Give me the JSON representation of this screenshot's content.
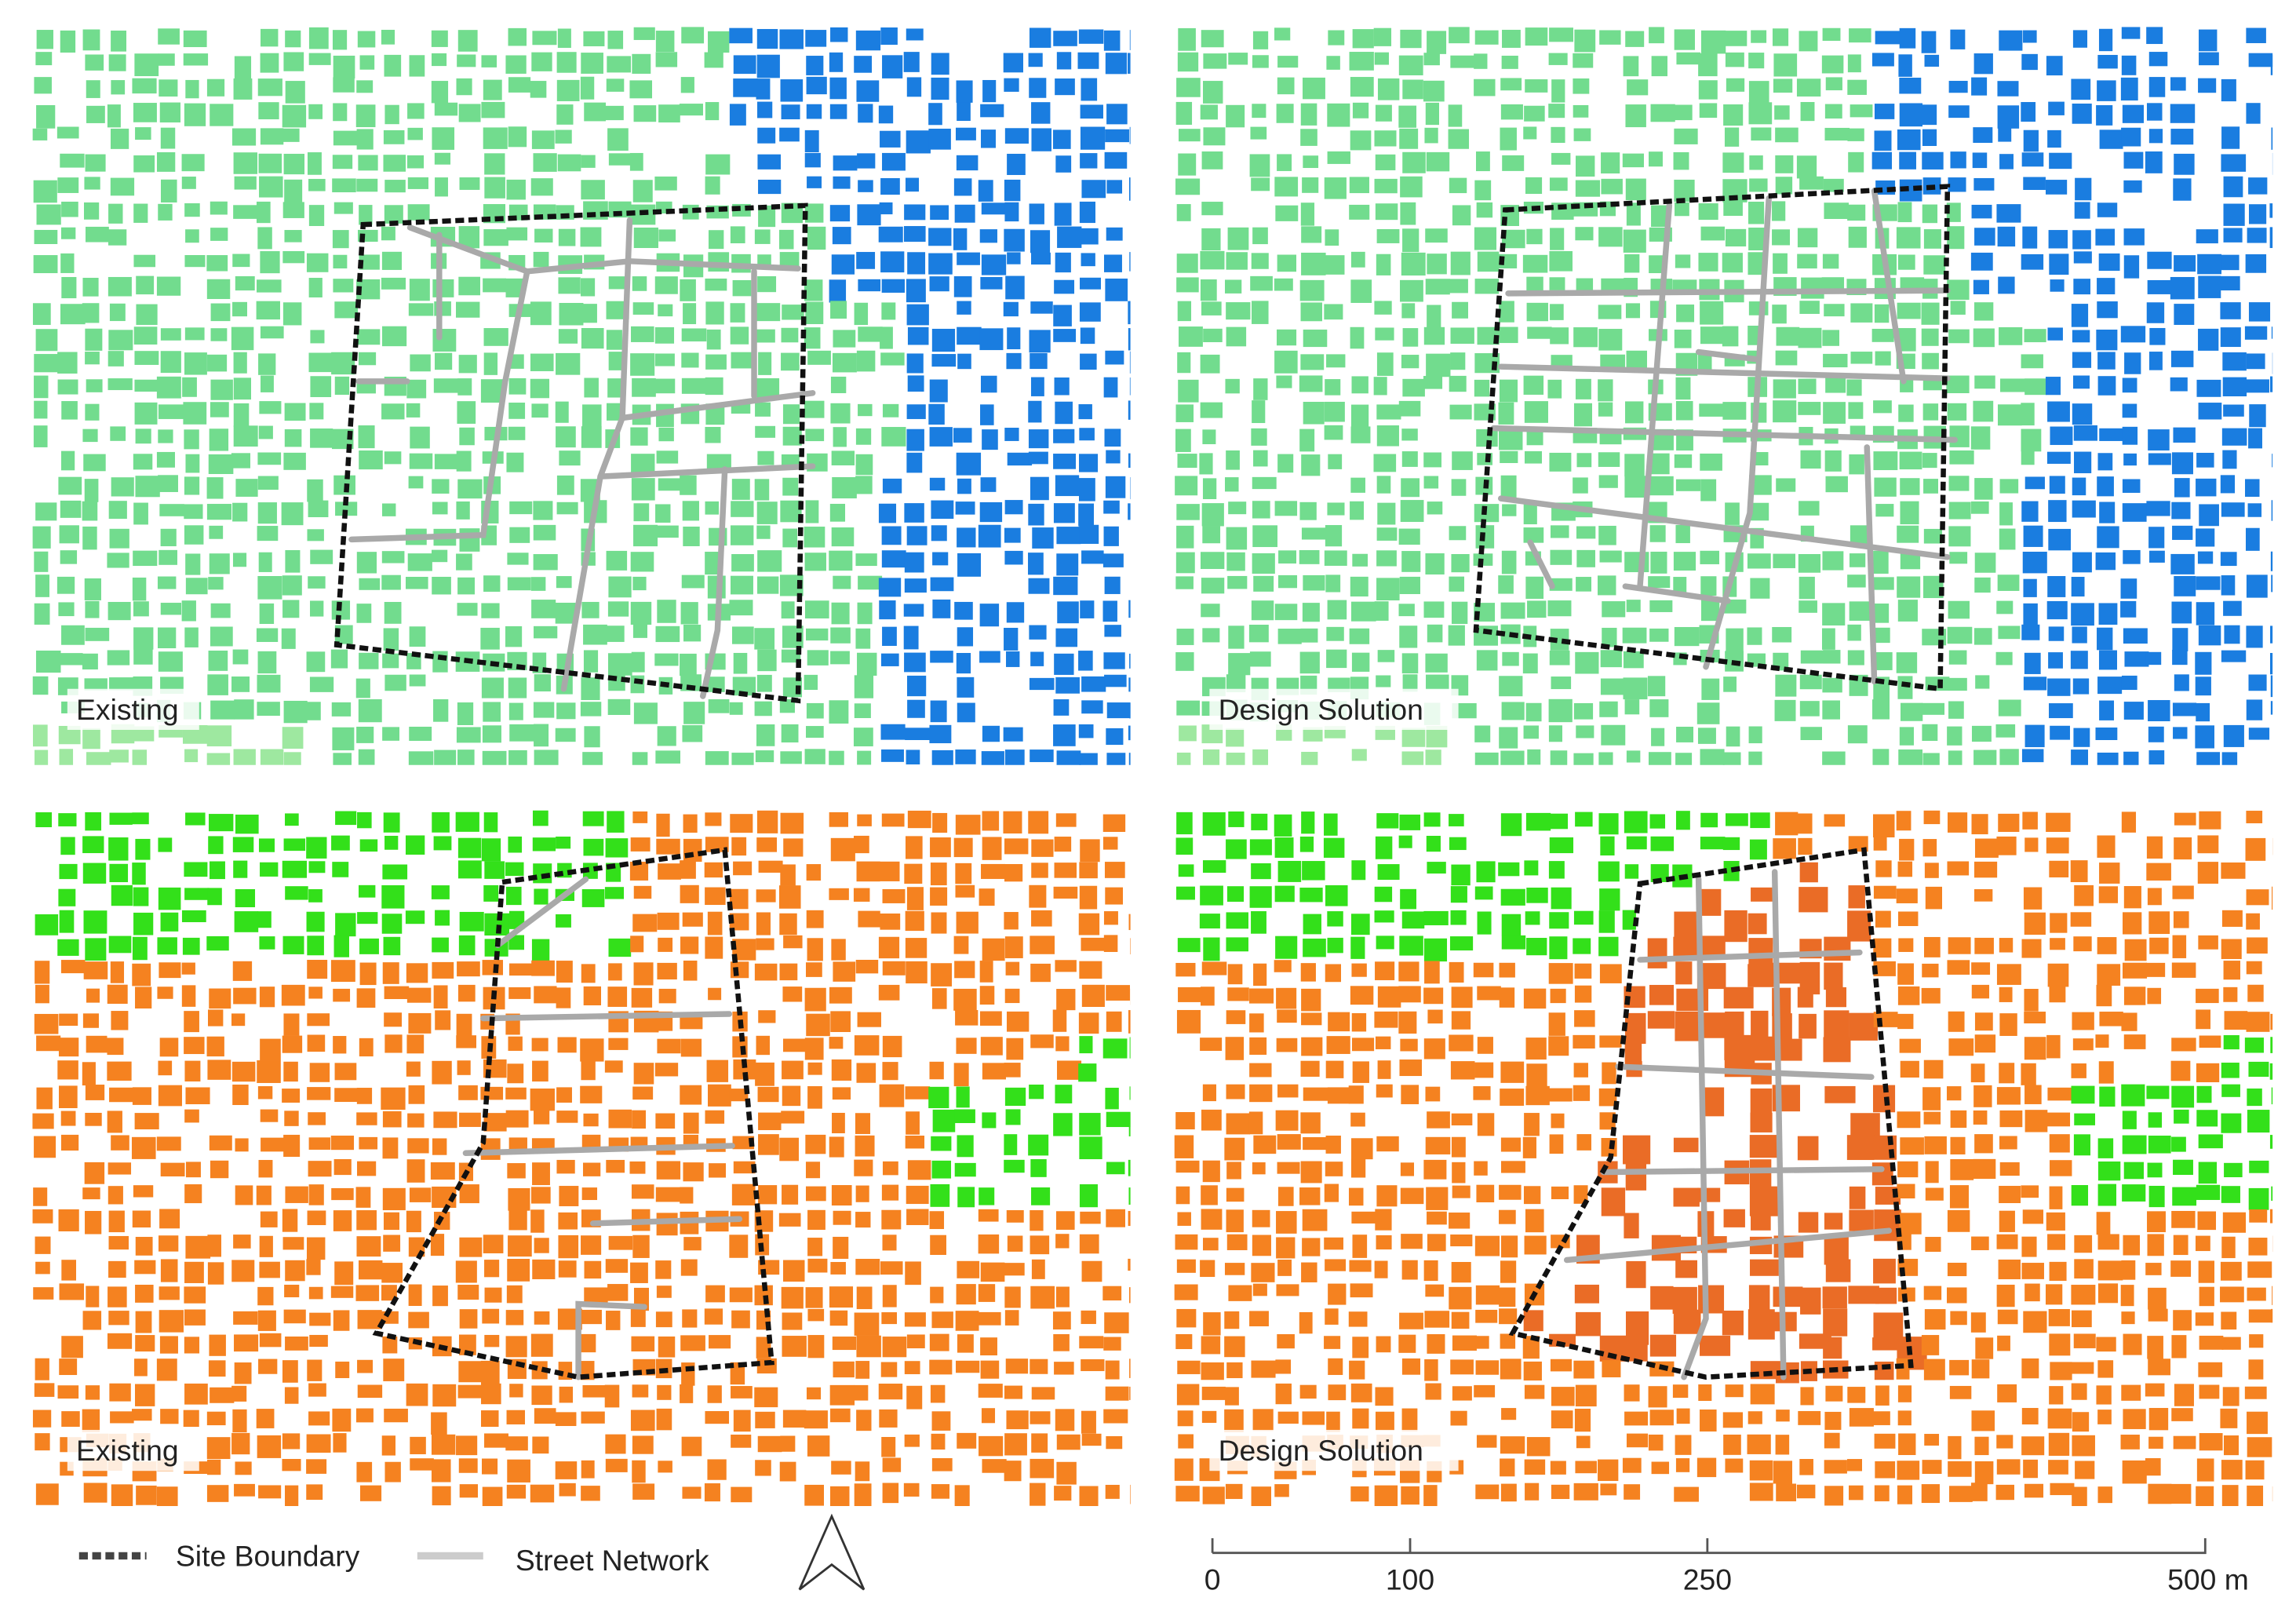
{
  "panels": [
    {
      "label": "Existing"
    },
    {
      "label": "Design Solution"
    },
    {
      "label": "Existing"
    },
    {
      "label": "Design Solution"
    }
  ],
  "legend": {
    "site_boundary": "Site Boundary",
    "street_network": "Street Network"
  },
  "scale_bar": {
    "labels": [
      "0",
      "100",
      "250",
      "500 m"
    ]
  }
}
